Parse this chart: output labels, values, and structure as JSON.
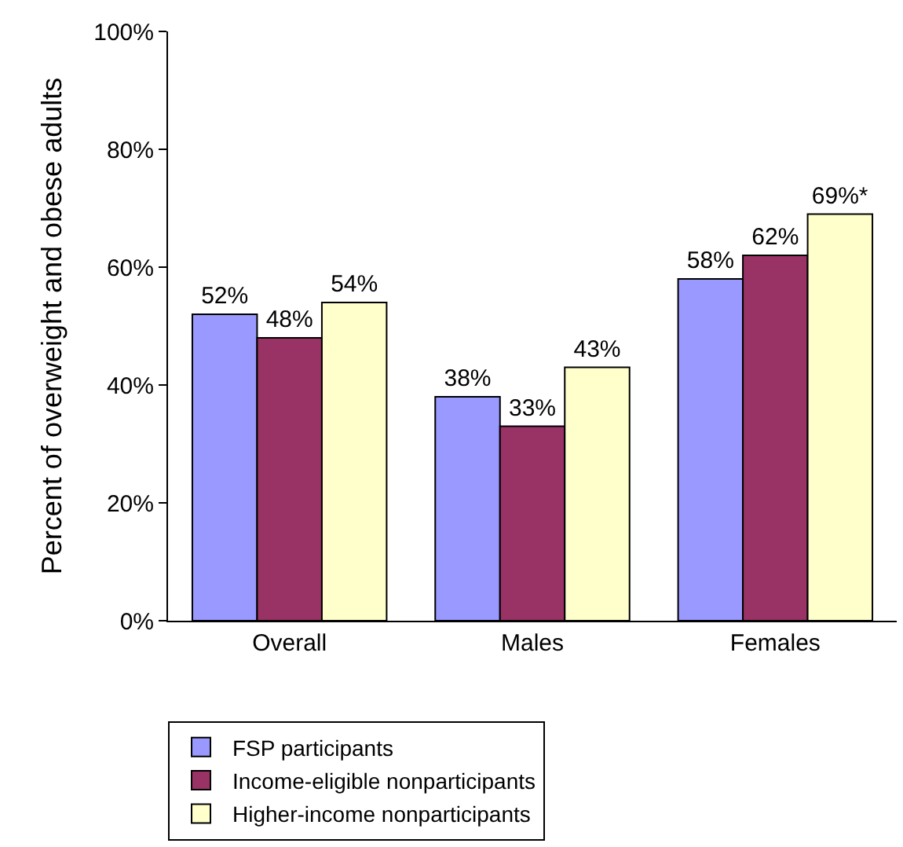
{
  "chart_data": {
    "type": "bar",
    "ylabel": "Percent of overweight and obese adults",
    "categories": [
      "Overall",
      "Males",
      "Females"
    ],
    "series": [
      {
        "name": "FSP participants",
        "color": "#9999ff",
        "values": [
          52,
          38,
          58
        ],
        "value_labels": [
          "52%",
          "38%",
          "58%"
        ]
      },
      {
        "name": "Income-eligible nonparticipants",
        "color": "#993366",
        "values": [
          48,
          33,
          62
        ],
        "value_labels": [
          "48%",
          "33%",
          "62%"
        ]
      },
      {
        "name": "Higher-income nonparticipants",
        "color": "#ffffcc",
        "values": [
          54,
          43,
          69
        ],
        "value_labels": [
          "54%",
          "43%",
          "69%*"
        ]
      }
    ],
    "ylim": [
      0,
      100
    ],
    "yticks": [
      {
        "value": 0,
        "label": "0%"
      },
      {
        "value": 20,
        "label": "20%"
      },
      {
        "value": 40,
        "label": "40%"
      },
      {
        "value": 60,
        "label": "60%"
      },
      {
        "value": 80,
        "label": "80%"
      },
      {
        "value": 100,
        "label": "100%"
      }
    ],
    "legend": "bottom"
  }
}
